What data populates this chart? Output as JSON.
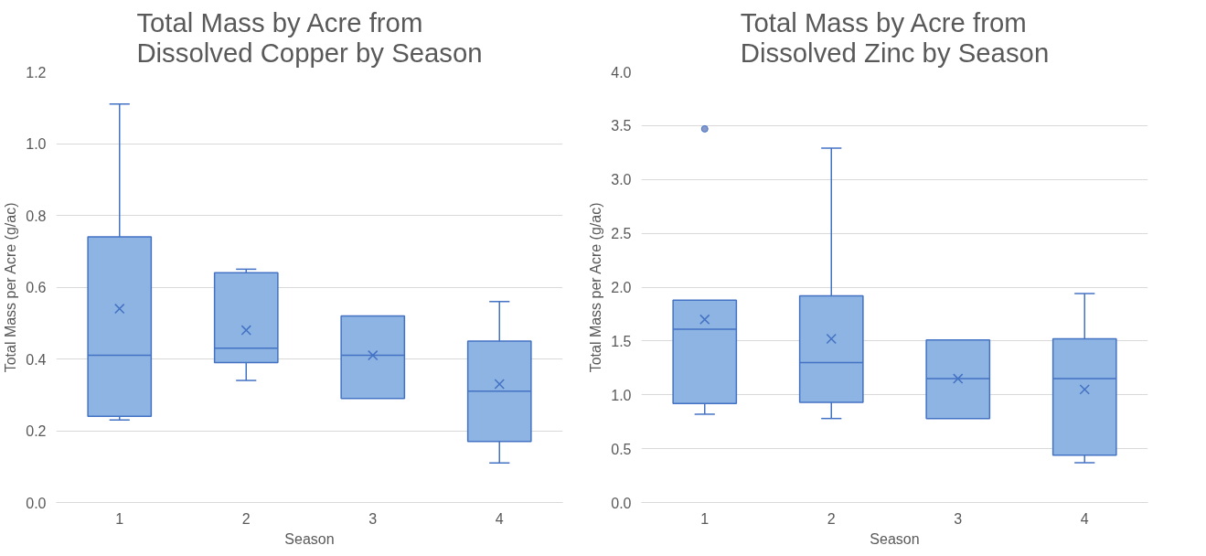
{
  "chart_data": [
    {
      "type": "box",
      "title": "Total Mass by Acre from Dissolved Copper by Season",
      "xlabel": "Season",
      "ylabel": "Total Mass per Acre (g/ac)",
      "categories": [
        "1",
        "2",
        "3",
        "4"
      ],
      "color": "#8db4e2",
      "grid": "y",
      "ylim": [
        0,
        1.2
      ],
      "yticks": [
        {
          "value": 0,
          "label": "0.0"
        },
        {
          "value": 0.2,
          "label": "0.2"
        },
        {
          "value": 0.4,
          "label": "0.4"
        },
        {
          "value": 0.6,
          "label": "0.6"
        },
        {
          "value": 0.8,
          "label": "0.8"
        },
        {
          "value": 1,
          "label": "1.0"
        },
        {
          "value": 1.2,
          "label": "1.2"
        }
      ],
      "boxes": [
        {
          "low": 0.23,
          "q1": 0.24,
          "median": 0.41,
          "q3": 0.74,
          "high": 1.11,
          "mean": 0.54
        },
        {
          "low": 0.34,
          "q1": 0.39,
          "median": 0.43,
          "q3": 0.64,
          "high": 0.65,
          "mean": 0.48
        },
        {
          "low": 0.29,
          "q1": 0.29,
          "median": 0.41,
          "q3": 0.52,
          "high": 0.52,
          "mean": 0.41
        },
        {
          "low": 0.11,
          "q1": 0.17,
          "median": 0.31,
          "q3": 0.45,
          "high": 0.56,
          "mean": 0.33
        }
      ]
    },
    {
      "type": "box",
      "title": "Total Mass by Acre from Dissolved Zinc by Season",
      "xlabel": "Season",
      "ylabel": "Total Mass per Acre (g/ac)",
      "categories": [
        "1",
        "2",
        "3",
        "4"
      ],
      "color": "#8db4e2",
      "grid": "y",
      "ylim": [
        0,
        4
      ],
      "yticks": [
        {
          "value": 0,
          "label": "0.0"
        },
        {
          "value": 0.5,
          "label": "0.5"
        },
        {
          "value": 1,
          "label": "1.0"
        },
        {
          "value": 1.5,
          "label": "1.5"
        },
        {
          "value": 2,
          "label": "2.0"
        },
        {
          "value": 2.5,
          "label": "2.5"
        },
        {
          "value": 3,
          "label": "3.0"
        },
        {
          "value": 3.5,
          "label": "3.5"
        },
        {
          "value": 4,
          "label": "4.0"
        }
      ],
      "boxes": [
        {
          "low": 0.82,
          "q1": 0.92,
          "median": 1.61,
          "q3": 1.88,
          "high": 1.88,
          "mean": 1.7,
          "outliers": [
            3.47
          ]
        },
        {
          "low": 0.78,
          "q1": 0.93,
          "median": 1.3,
          "q3": 1.92,
          "high": 3.29,
          "mean": 1.52
        },
        {
          "low": 0.78,
          "q1": 0.78,
          "median": 1.15,
          "q3": 1.51,
          "high": 1.51,
          "mean": 1.15
        },
        {
          "low": 0.37,
          "q1": 0.44,
          "median": 1.15,
          "q3": 1.52,
          "high": 1.94,
          "mean": 1.05
        }
      ]
    }
  ]
}
